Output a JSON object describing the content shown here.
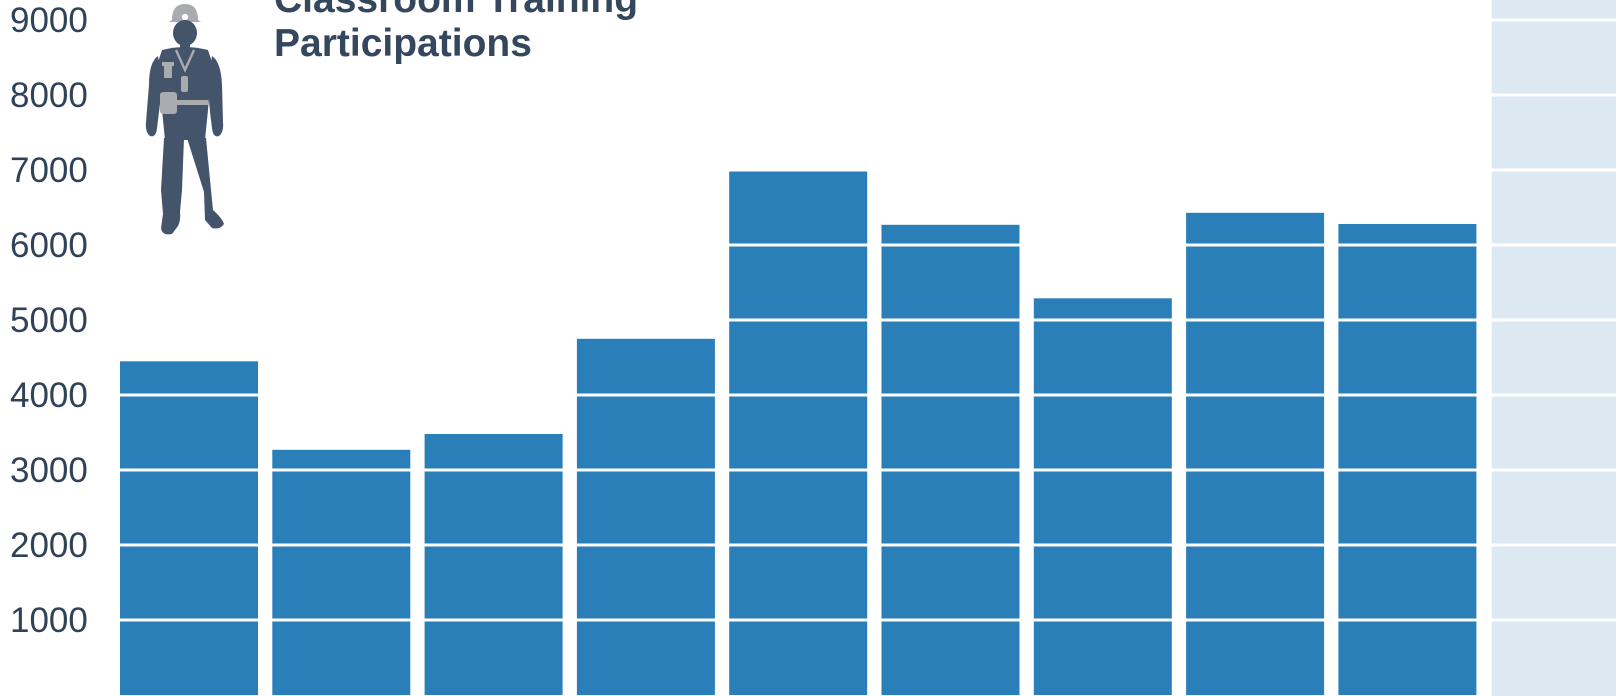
{
  "chart_data": {
    "type": "bar",
    "title_lines": [
      "Classroom Training",
      "Participations"
    ],
    "xlabel": "",
    "ylabel": "",
    "values": [
      4450,
      3270,
      3480,
      4750,
      7000,
      6270,
      5290,
      6430,
      6280
    ],
    "ylim": [
      0,
      9000
    ],
    "yticks": [
      1000,
      2000,
      3000,
      4000,
      5000,
      6000,
      7000,
      8000,
      9000
    ],
    "grid": true,
    "legend": "none",
    "colors": {
      "bar": "#2a7fb8",
      "gridline": "#ffffff",
      "shaded_band": "#dce9f3",
      "tick_text": "#2f4258",
      "title_text": "#34475d",
      "silhouette": "#44546b",
      "silhouette_accent": "#a9abae"
    },
    "icon": "construction-worker-icon"
  }
}
